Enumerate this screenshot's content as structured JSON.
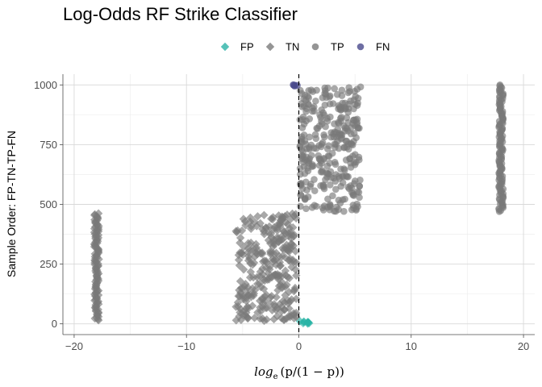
{
  "chart_data": {
    "type": "scatter",
    "title": "Log-Odds RF Strike Classifier",
    "xlabel": {
      "base": "log",
      "subscript": "e",
      "rest": "(p/(1 − p))"
    },
    "ylabel": "Sample Order: FP-TN-TP-FN",
    "xlim": [
      -21,
      21
    ],
    "ylim": [
      -45,
      1045
    ],
    "x_ticks": [
      -20,
      -10,
      0,
      10,
      20
    ],
    "y_ticks": [
      0,
      250,
      500,
      750,
      1000
    ],
    "grid": true,
    "legend_position": "top",
    "reference_line": {
      "x": 0,
      "style": "dashed"
    },
    "series": [
      {
        "name": "FP",
        "marker": "diamond",
        "color": "#2ab3a6",
        "groups": [
          {
            "kind": "cloud",
            "x_range": [
              0.1,
              1.1
            ],
            "y_range": [
              0,
              12
            ],
            "count": 10
          }
        ]
      },
      {
        "name": "TN",
        "marker": "diamond",
        "color": "#7a7a7a",
        "groups": [
          {
            "kind": "column",
            "x": -18,
            "y_range": [
              15,
              462
            ],
            "count": 120
          },
          {
            "kind": "cloud",
            "x_range": [
              -5.6,
              -0.2
            ],
            "y_range": [
              12,
              462
            ],
            "count": 300
          }
        ]
      },
      {
        "name": "TP",
        "marker": "circle",
        "color": "#7a7a7a",
        "groups": [
          {
            "kind": "cloud",
            "x_range": [
              0.1,
              5.5
            ],
            "y_range": [
              470,
              995
            ],
            "count": 320
          },
          {
            "kind": "column",
            "x": 18,
            "y_range": [
              470,
              1000
            ],
            "count": 130
          }
        ]
      },
      {
        "name": "FN",
        "marker": "circle",
        "color": "#4a4a8c",
        "groups": [
          {
            "kind": "cloud",
            "x_range": [
              -0.5,
              -0.05
            ],
            "y_range": [
              995,
              1002
            ],
            "count": 5
          }
        ]
      }
    ]
  }
}
